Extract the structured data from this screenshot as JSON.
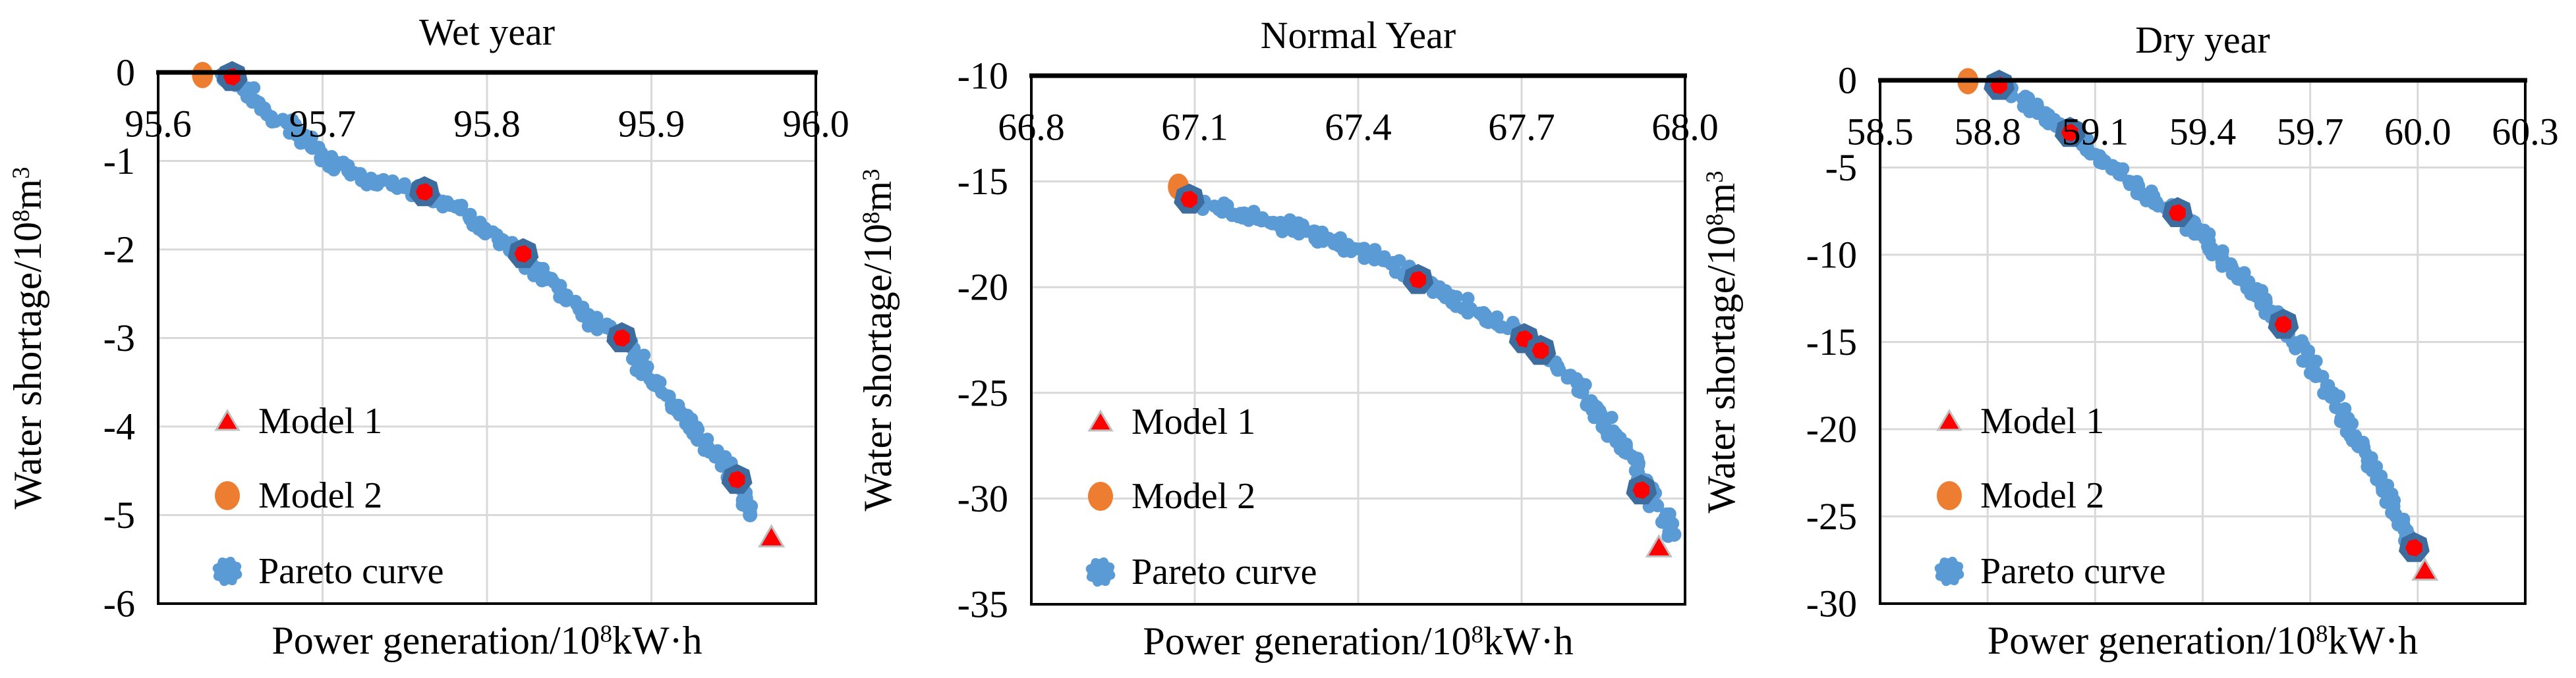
{
  "figure": {
    "description": "Three Pareto-front scatter charts comparing Model 1, Model 2 and the Pareto curve for wet, normal and dry years"
  },
  "colors": {
    "pareto_blue": "#5B9BD5",
    "highlight_ring_blue": "#3D6D9E",
    "model1_red": "#FF0000",
    "model2_orange": "#ED7D31",
    "gridline_gray": "#D9D9D9",
    "axis_black": "#000000",
    "triangle_edge_gray": "#BFBFBF",
    "plot_background": "#FFFFFF"
  },
  "chart_data": [
    {
      "type": "scatter",
      "title": "Wet year",
      "xlabel": "Power generation/10⁸kW·h",
      "xlabel_parts": [
        {
          "t": "Power generation/10"
        },
        {
          "t": "8",
          "sup": true
        },
        {
          "t": "kW·h"
        }
      ],
      "ylabel": "Water shortage/10⁸m³",
      "ylabel_parts": [
        {
          "t": "Water shortage/10"
        },
        {
          "t": "8",
          "sup": true
        },
        {
          "t": "m"
        },
        {
          "t": "3",
          "sup": true
        }
      ],
      "xlim": [
        95.6,
        96.0
      ],
      "ylim": [
        -6,
        0
      ],
      "xticks": [
        "95.6",
        "95.7",
        "95.8",
        "95.9",
        "96.0"
      ],
      "yticks": [
        "0",
        "-1",
        "-2",
        "-3",
        "-4",
        "-5",
        "-6"
      ],
      "grid": true,
      "legend": {
        "position": "inside lower-left",
        "entries": [
          "Model 1",
          "Model 2",
          "Pareto curve"
        ]
      },
      "series": [
        {
          "name": "Model 1",
          "marker": "triangle",
          "color": "#FF0000",
          "in_legend": true,
          "points": [
            [
              95.973,
              -5.25
            ]
          ]
        },
        {
          "name": "Model 2",
          "marker": "circle",
          "color": "#ED7D31",
          "in_legend": true,
          "points": [
            [
              95.627,
              -0.03
            ]
          ]
        },
        {
          "name": "Pareto curve",
          "marker": "dense-point-band",
          "color": "#5B9BD5",
          "in_legend": true,
          "points": [
            [
              95.638,
              -0.06
            ],
            [
              95.652,
              -0.18
            ],
            [
              95.664,
              -0.38
            ],
            [
              95.676,
              -0.55
            ],
            [
              95.688,
              -0.73
            ],
            [
              95.7,
              -0.93
            ],
            [
              95.712,
              -1.08
            ],
            [
              95.727,
              -1.2
            ],
            [
              95.745,
              -1.28
            ],
            [
              95.762,
              -1.35
            ],
            [
              95.775,
              -1.44
            ],
            [
              95.787,
              -1.58
            ],
            [
              95.797,
              -1.75
            ],
            [
              95.808,
              -1.92
            ],
            [
              95.82,
              -2.05
            ],
            [
              95.833,
              -2.28
            ],
            [
              95.846,
              -2.5
            ],
            [
              95.858,
              -2.7
            ],
            [
              95.87,
              -2.88
            ],
            [
              95.882,
              -3.02
            ],
            [
              95.892,
              -3.25
            ],
            [
              95.902,
              -3.5
            ],
            [
              95.912,
              -3.75
            ],
            [
              95.922,
              -3.98
            ],
            [
              95.932,
              -4.18
            ],
            [
              95.942,
              -4.38
            ],
            [
              95.952,
              -4.6
            ],
            [
              95.957,
              -4.82
            ],
            [
              95.96,
              -5.0
            ]
          ]
        },
        {
          "name": "Highlighted Pareto solutions",
          "marker": "heptagon-ring-red-dot",
          "color": "#3D6D9E",
          "in_legend": false,
          "points": [
            [
              95.645,
              -0.05
            ],
            [
              95.762,
              -1.35
            ],
            [
              95.822,
              -2.05
            ],
            [
              95.882,
              -3.0
            ],
            [
              95.952,
              -4.6
            ]
          ]
        }
      ]
    },
    {
      "type": "scatter",
      "title": "Normal Year",
      "xlabel": "Power generation/10⁸kW·h",
      "xlabel_parts": [
        {
          "t": "Power generation/10"
        },
        {
          "t": "8",
          "sup": true
        },
        {
          "t": "kW·h"
        }
      ],
      "ylabel": "Water shortage/10⁸m³",
      "ylabel_parts": [
        {
          "t": "Water shortage/10"
        },
        {
          "t": "8",
          "sup": true
        },
        {
          "t": "m"
        },
        {
          "t": "3",
          "sup": true
        }
      ],
      "xlim": [
        66.8,
        68.0
      ],
      "ylim": [
        -35,
        -10
      ],
      "xticks": [
        "66.8",
        "67.1",
        "67.4",
        "67.7",
        "68.0"
      ],
      "yticks": [
        "-10",
        "-15",
        "-20",
        "-25",
        "-30",
        "-35"
      ],
      "grid": true,
      "legend": {
        "position": "inside lower-left",
        "entries": [
          "Model 1",
          "Model 2",
          "Pareto curve"
        ]
      },
      "series": [
        {
          "name": "Model 1",
          "marker": "triangle",
          "color": "#FF0000",
          "in_legend": true,
          "points": [
            [
              67.952,
              -32.3
            ]
          ]
        },
        {
          "name": "Model 2",
          "marker": "circle",
          "color": "#ED7D31",
          "in_legend": true,
          "points": [
            [
              67.07,
              -15.25
            ]
          ]
        },
        {
          "name": "Pareto curve",
          "marker": "dense-point-band",
          "color": "#5B9BD5",
          "in_legend": true,
          "points": [
            [
              67.08,
              -15.75
            ],
            [
              67.12,
              -16.05
            ],
            [
              67.17,
              -16.4
            ],
            [
              67.23,
              -16.8
            ],
            [
              67.29,
              -17.25
            ],
            [
              67.35,
              -17.75
            ],
            [
              67.41,
              -18.3
            ],
            [
              67.47,
              -18.95
            ],
            [
              67.51,
              -19.6
            ],
            [
              67.55,
              -20.2
            ],
            [
              67.6,
              -20.9
            ],
            [
              67.64,
              -21.5
            ],
            [
              67.68,
              -22.0
            ],
            [
              67.7,
              -22.45
            ],
            [
              67.73,
              -23.0
            ],
            [
              67.76,
              -23.6
            ],
            [
              67.79,
              -24.3
            ],
            [
              67.82,
              -25.2
            ],
            [
              67.85,
              -26.2
            ],
            [
              67.875,
              -27.1
            ],
            [
              67.895,
              -27.9
            ],
            [
              67.915,
              -28.8
            ],
            [
              67.93,
              -29.5
            ],
            [
              67.945,
              -30.2
            ],
            [
              67.96,
              -30.9
            ],
            [
              67.972,
              -31.4
            ],
            [
              67.98,
              -31.7
            ]
          ]
        },
        {
          "name": "Highlighted Pareto solutions",
          "marker": "heptagon-ring-red-dot",
          "color": "#3D6D9E",
          "in_legend": false,
          "points": [
            [
              67.09,
              -15.85
            ],
            [
              67.51,
              -19.65
            ],
            [
              67.705,
              -22.45
            ],
            [
              67.735,
              -23.0
            ],
            [
              67.92,
              -29.6
            ]
          ]
        }
      ]
    },
    {
      "type": "scatter",
      "title": "Dry year",
      "xlabel": "Power generation/10⁸kW·h",
      "xlabel_parts": [
        {
          "t": "Power generation/10"
        },
        {
          "t": "8",
          "sup": true
        },
        {
          "t": "kW·h"
        }
      ],
      "ylabel": "Water shortage/10⁸m³",
      "ylabel_parts": [
        {
          "t": "Water shortage/10"
        },
        {
          "t": "8",
          "sup": true
        },
        {
          "t": "m"
        },
        {
          "t": "3",
          "sup": true
        }
      ],
      "xlim": [
        58.5,
        60.3
      ],
      "ylim": [
        -30,
        0
      ],
      "xticks": [
        "58.5",
        "58.8",
        "59.1",
        "59.4",
        "59.7",
        "60.0",
        "60.3"
      ],
      "yticks": [
        "0",
        "-5",
        "-10",
        "-15",
        "-20",
        "-25",
        "-30"
      ],
      "grid": true,
      "legend": {
        "position": "inside lower-left",
        "entries": [
          "Model 1",
          "Model 2",
          "Pareto curve"
        ]
      },
      "series": [
        {
          "name": "Model 1",
          "marker": "triangle",
          "color": "#FF0000",
          "in_legend": true,
          "points": [
            [
              60.02,
              -28.1
            ]
          ]
        },
        {
          "name": "Model 2",
          "marker": "circle",
          "color": "#ED7D31",
          "in_legend": true,
          "points": [
            [
              58.745,
              -0.05
            ]
          ]
        },
        {
          "name": "Pareto curve",
          "marker": "dense-point-band",
          "color": "#5B9BD5",
          "in_legend": true,
          "points": [
            [
              58.822,
              -0.15
            ],
            [
              58.845,
              -0.4
            ],
            [
              58.868,
              -0.68
            ],
            [
              58.89,
              -1.0
            ],
            [
              58.915,
              -1.35
            ],
            [
              58.94,
              -1.7
            ],
            [
              58.965,
              -2.05
            ],
            [
              58.99,
              -2.45
            ],
            [
              59.03,
              -3.0
            ],
            [
              59.06,
              -3.5
            ],
            [
              59.1,
              -4.2
            ],
            [
              59.15,
              -5.0
            ],
            [
              59.2,
              -5.9
            ],
            [
              59.26,
              -6.8
            ],
            [
              59.33,
              -7.7
            ],
            [
              59.39,
              -8.8
            ],
            [
              59.44,
              -9.9
            ],
            [
              59.49,
              -11.0
            ],
            [
              59.54,
              -12.1
            ],
            [
              59.59,
              -13.2
            ],
            [
              59.63,
              -14.2
            ],
            [
              59.67,
              -15.3
            ],
            [
              59.71,
              -16.5
            ],
            [
              59.75,
              -17.8
            ],
            [
              59.79,
              -19.1
            ],
            [
              59.83,
              -20.4
            ],
            [
              59.86,
              -21.5
            ],
            [
              59.895,
              -22.8
            ],
            [
              59.925,
              -24.0
            ],
            [
              59.95,
              -25.2
            ],
            [
              59.975,
              -26.2
            ],
            [
              59.995,
              -27.1
            ]
          ]
        },
        {
          "name": "Highlighted Pareto solutions",
          "marker": "heptagon-ring-red-dot",
          "color": "#3D6D9E",
          "in_legend": false,
          "points": [
            [
              58.832,
              -0.3
            ],
            [
              59.03,
              -3.0
            ],
            [
              59.33,
              -7.6
            ],
            [
              59.625,
              -14.0
            ],
            [
              59.99,
              -26.8
            ]
          ]
        }
      ]
    }
  ]
}
